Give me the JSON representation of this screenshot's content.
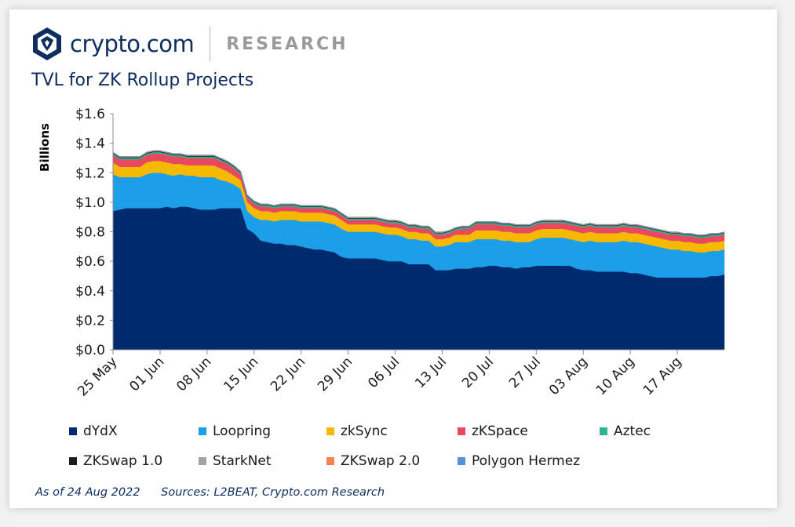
{
  "header": {
    "brand": "crypto.com",
    "section": "RESEARCH"
  },
  "colors": {
    "brand_navy": "#0d2e5f",
    "background": "#ffffff"
  },
  "footer": {
    "date_note": "As of 24 Aug 2022",
    "sources": "Sources:  L2BEAT, Crypto.com Research"
  },
  "chart_data": {
    "type": "area",
    "stacked": true,
    "title": "TVL for ZK Rollup Projects",
    "ylabel": "Billions",
    "xlabel": "",
    "ylim": [
      0,
      1.6
    ],
    "y_ticks": [
      "$0.0",
      "$0.2",
      "$0.4",
      "$0.6",
      "$0.8",
      "$1.0",
      "$1.2",
      "$1.4",
      "$1.6"
    ],
    "x_tick_labels": [
      "25 May",
      "01 Jun",
      "08 Jun",
      "15 Jun",
      "22 Jun",
      "29 Jun",
      "06 Jul",
      "13 Jul",
      "20 Jul",
      "27 Jul",
      "03 Aug",
      "10 Aug",
      "17 Aug"
    ],
    "grid": false,
    "legend_position": "bottom",
    "x": [
      "25 May",
      "26 May",
      "27 May",
      "28 May",
      "29 May",
      "30 May",
      "31 May",
      "01 Jun",
      "02 Jun",
      "03 Jun",
      "04 Jun",
      "05 Jun",
      "06 Jun",
      "07 Jun",
      "08 Jun",
      "09 Jun",
      "10 Jun",
      "11 Jun",
      "12 Jun",
      "13 Jun",
      "14 Jun",
      "15 Jun",
      "16 Jun",
      "17 Jun",
      "18 Jun",
      "19 Jun",
      "20 Jun",
      "21 Jun",
      "22 Jun",
      "23 Jun",
      "24 Jun",
      "25 Jun",
      "26 Jun",
      "27 Jun",
      "28 Jun",
      "29 Jun",
      "30 Jun",
      "01 Jul",
      "02 Jul",
      "03 Jul",
      "04 Jul",
      "05 Jul",
      "06 Jul",
      "07 Jul",
      "08 Jul",
      "09 Jul",
      "10 Jul",
      "11 Jul",
      "12 Jul",
      "13 Jul",
      "14 Jul",
      "15 Jul",
      "16 Jul",
      "17 Jul",
      "18 Jul",
      "19 Jul",
      "20 Jul",
      "21 Jul",
      "22 Jul",
      "23 Jul",
      "24 Jul",
      "25 Jul",
      "26 Jul",
      "27 Jul",
      "28 Jul",
      "29 Jul",
      "30 Jul",
      "31 Jul",
      "01 Aug",
      "02 Aug",
      "03 Aug",
      "04 Aug",
      "05 Aug",
      "06 Aug",
      "07 Aug",
      "08 Aug",
      "09 Aug",
      "10 Aug",
      "11 Aug",
      "12 Aug",
      "13 Aug",
      "14 Aug",
      "15 Aug",
      "16 Aug",
      "17 Aug",
      "18 Aug",
      "19 Aug",
      "20 Aug",
      "21 Aug",
      "22 Aug",
      "23 Aug",
      "24 Aug"
    ],
    "series": [
      {
        "name": "dYdX",
        "color": "#002a6e",
        "values": [
          0.94,
          0.95,
          0.96,
          0.96,
          0.96,
          0.96,
          0.96,
          0.96,
          0.97,
          0.96,
          0.97,
          0.97,
          0.96,
          0.95,
          0.95,
          0.95,
          0.96,
          0.96,
          0.96,
          0.96,
          0.82,
          0.79,
          0.74,
          0.73,
          0.72,
          0.72,
          0.71,
          0.71,
          0.7,
          0.69,
          0.68,
          0.68,
          0.67,
          0.66,
          0.63,
          0.62,
          0.62,
          0.62,
          0.62,
          0.62,
          0.61,
          0.6,
          0.6,
          0.6,
          0.58,
          0.58,
          0.58,
          0.58,
          0.54,
          0.54,
          0.54,
          0.55,
          0.55,
          0.55,
          0.56,
          0.56,
          0.57,
          0.57,
          0.56,
          0.56,
          0.55,
          0.56,
          0.56,
          0.57,
          0.57,
          0.57,
          0.57,
          0.57,
          0.57,
          0.55,
          0.54,
          0.54,
          0.53,
          0.53,
          0.53,
          0.53,
          0.53,
          0.52,
          0.52,
          0.51,
          0.5,
          0.49,
          0.49,
          0.49,
          0.49,
          0.49,
          0.49,
          0.49,
          0.49,
          0.5,
          0.5,
          0.51
        ]
      },
      {
        "name": "Loopring",
        "color": "#1a9fe8",
        "values": [
          0.25,
          0.22,
          0.21,
          0.21,
          0.21,
          0.23,
          0.24,
          0.24,
          0.22,
          0.22,
          0.22,
          0.21,
          0.22,
          0.22,
          0.22,
          0.22,
          0.19,
          0.18,
          0.16,
          0.13,
          0.12,
          0.11,
          0.14,
          0.15,
          0.15,
          0.16,
          0.17,
          0.17,
          0.17,
          0.18,
          0.19,
          0.19,
          0.19,
          0.19,
          0.19,
          0.18,
          0.18,
          0.18,
          0.18,
          0.18,
          0.18,
          0.18,
          0.18,
          0.17,
          0.17,
          0.17,
          0.16,
          0.16,
          0.16,
          0.16,
          0.17,
          0.18,
          0.18,
          0.18,
          0.19,
          0.19,
          0.18,
          0.18,
          0.18,
          0.18,
          0.18,
          0.17,
          0.17,
          0.18,
          0.19,
          0.19,
          0.19,
          0.19,
          0.18,
          0.19,
          0.19,
          0.2,
          0.2,
          0.2,
          0.2,
          0.2,
          0.21,
          0.21,
          0.21,
          0.21,
          0.21,
          0.21,
          0.2,
          0.19,
          0.19,
          0.18,
          0.18,
          0.17,
          0.17,
          0.17,
          0.17,
          0.17
        ]
      },
      {
        "name": "zkSync",
        "color": "#f7b800",
        "values": [
          0.08,
          0.07,
          0.07,
          0.07,
          0.07,
          0.08,
          0.08,
          0.08,
          0.08,
          0.08,
          0.07,
          0.07,
          0.07,
          0.08,
          0.08,
          0.08,
          0.08,
          0.07,
          0.06,
          0.06,
          0.06,
          0.06,
          0.06,
          0.06,
          0.06,
          0.06,
          0.06,
          0.06,
          0.06,
          0.06,
          0.06,
          0.06,
          0.06,
          0.06,
          0.06,
          0.05,
          0.05,
          0.05,
          0.05,
          0.05,
          0.05,
          0.05,
          0.05,
          0.05,
          0.05,
          0.05,
          0.05,
          0.05,
          0.05,
          0.05,
          0.05,
          0.05,
          0.05,
          0.05,
          0.06,
          0.06,
          0.06,
          0.06,
          0.06,
          0.06,
          0.06,
          0.06,
          0.06,
          0.06,
          0.06,
          0.06,
          0.06,
          0.06,
          0.06,
          0.06,
          0.06,
          0.06,
          0.06,
          0.06,
          0.06,
          0.06,
          0.06,
          0.06,
          0.06,
          0.06,
          0.06,
          0.06,
          0.06,
          0.06,
          0.06,
          0.06,
          0.06,
          0.06,
          0.06,
          0.06,
          0.06,
          0.06
        ]
      },
      {
        "name": "zKSpace",
        "color": "#e8495f",
        "values": [
          0.05,
          0.05,
          0.05,
          0.05,
          0.05,
          0.05,
          0.05,
          0.05,
          0.05,
          0.05,
          0.05,
          0.05,
          0.05,
          0.05,
          0.05,
          0.05,
          0.05,
          0.05,
          0.05,
          0.04,
          0.03,
          0.03,
          0.03,
          0.03,
          0.03,
          0.03,
          0.03,
          0.03,
          0.03,
          0.03,
          0.03,
          0.03,
          0.03,
          0.03,
          0.03,
          0.03,
          0.03,
          0.03,
          0.03,
          0.03,
          0.03,
          0.03,
          0.03,
          0.03,
          0.03,
          0.03,
          0.03,
          0.03,
          0.03,
          0.03,
          0.03,
          0.03,
          0.04,
          0.04,
          0.04,
          0.04,
          0.04,
          0.04,
          0.04,
          0.04,
          0.04,
          0.04,
          0.04,
          0.04,
          0.04,
          0.04,
          0.04,
          0.04,
          0.04,
          0.04,
          0.04,
          0.04,
          0.04,
          0.04,
          0.04,
          0.04,
          0.04,
          0.04,
          0.04,
          0.04,
          0.04,
          0.04,
          0.04,
          0.04,
          0.04,
          0.04,
          0.04,
          0.04,
          0.04,
          0.04,
          0.04,
          0.04
        ]
      },
      {
        "name": "Aztec",
        "color": "#2bb594",
        "values": [
          0.01,
          0.01,
          0.01,
          0.01,
          0.01,
          0.01,
          0.01,
          0.01,
          0.01,
          0.01,
          0.01,
          0.01,
          0.01,
          0.01,
          0.01,
          0.01,
          0.01,
          0.01,
          0.01,
          0.01,
          0.01,
          0.01,
          0.01,
          0.01,
          0.01,
          0.01,
          0.01,
          0.01,
          0.01,
          0.01,
          0.01,
          0.01,
          0.01,
          0.01,
          0.01,
          0.01,
          0.01,
          0.01,
          0.01,
          0.01,
          0.01,
          0.01,
          0.01,
          0.01,
          0.01,
          0.01,
          0.01,
          0.01,
          0.01,
          0.01,
          0.01,
          0.01,
          0.01,
          0.01,
          0.01,
          0.01,
          0.01,
          0.01,
          0.01,
          0.01,
          0.01,
          0.01,
          0.01,
          0.01,
          0.01,
          0.01,
          0.01,
          0.01,
          0.01,
          0.01,
          0.01,
          0.01,
          0.01,
          0.01,
          0.01,
          0.01,
          0.01,
          0.01,
          0.01,
          0.01,
          0.01,
          0.01,
          0.01,
          0.01,
          0.01,
          0.01,
          0.01,
          0.01,
          0.01,
          0.01,
          0.01,
          0.01
        ]
      },
      {
        "name": "ZKSwap 1.0",
        "color": "#1c1c1c",
        "values": [
          0.005,
          0.005,
          0.005,
          0.005,
          0.005,
          0.005,
          0.005,
          0.005,
          0.005,
          0.005,
          0.005,
          0.005,
          0.005,
          0.005,
          0.005,
          0.005,
          0.005,
          0.005,
          0.005,
          0.005,
          0.004,
          0.004,
          0.004,
          0.004,
          0.004,
          0.004,
          0.004,
          0.004,
          0.004,
          0.004,
          0.004,
          0.004,
          0.004,
          0.004,
          0.004,
          0.004,
          0.004,
          0.004,
          0.004,
          0.004,
          0.004,
          0.004,
          0.004,
          0.004,
          0.004,
          0.004,
          0.004,
          0.004,
          0.004,
          0.004,
          0.004,
          0.004,
          0.004,
          0.004,
          0.004,
          0.004,
          0.004,
          0.004,
          0.004,
          0.004,
          0.004,
          0.004,
          0.004,
          0.004,
          0.004,
          0.004,
          0.004,
          0.004,
          0.004,
          0.004,
          0.004,
          0.004,
          0.004,
          0.004,
          0.004,
          0.004,
          0.004,
          0.004,
          0.004,
          0.004,
          0.004,
          0.004,
          0.004,
          0.004,
          0.004,
          0.004,
          0.004,
          0.004,
          0.004,
          0.004,
          0.004,
          0.004
        ]
      },
      {
        "name": "StarkNet",
        "color": "#a3a3a3",
        "values": [
          0.002,
          0.002,
          0.002,
          0.002,
          0.002,
          0.002,
          0.002,
          0.002,
          0.002,
          0.002,
          0.002,
          0.002,
          0.002,
          0.002,
          0.002,
          0.002,
          0.002,
          0.002,
          0.002,
          0.002,
          0.002,
          0.002,
          0.002,
          0.002,
          0.002,
          0.002,
          0.002,
          0.002,
          0.002,
          0.002,
          0.002,
          0.002,
          0.002,
          0.002,
          0.002,
          0.002,
          0.002,
          0.002,
          0.002,
          0.002,
          0.002,
          0.002,
          0.002,
          0.002,
          0.002,
          0.002,
          0.002,
          0.002,
          0.002,
          0.002,
          0.002,
          0.002,
          0.002,
          0.002,
          0.002,
          0.002,
          0.002,
          0.002,
          0.002,
          0.002,
          0.002,
          0.002,
          0.002,
          0.002,
          0.002,
          0.002,
          0.002,
          0.002,
          0.002,
          0.002,
          0.002,
          0.002,
          0.002,
          0.002,
          0.002,
          0.002,
          0.002,
          0.002,
          0.002,
          0.002,
          0.002,
          0.002,
          0.002,
          0.002,
          0.002,
          0.002,
          0.002,
          0.002,
          0.002,
          0.002,
          0.002,
          0.002
        ]
      },
      {
        "name": "ZKSwap 2.0",
        "color": "#f28250",
        "values": [
          0.002,
          0.002,
          0.002,
          0.002,
          0.002,
          0.002,
          0.002,
          0.002,
          0.002,
          0.002,
          0.002,
          0.002,
          0.002,
          0.002,
          0.002,
          0.002,
          0.002,
          0.002,
          0.002,
          0.002,
          0.002,
          0.002,
          0.002,
          0.002,
          0.002,
          0.002,
          0.002,
          0.002,
          0.002,
          0.002,
          0.002,
          0.002,
          0.002,
          0.002,
          0.002,
          0.002,
          0.002,
          0.002,
          0.002,
          0.002,
          0.002,
          0.002,
          0.002,
          0.002,
          0.002,
          0.002,
          0.002,
          0.002,
          0.002,
          0.002,
          0.002,
          0.002,
          0.002,
          0.002,
          0.002,
          0.002,
          0.002,
          0.002,
          0.002,
          0.002,
          0.002,
          0.002,
          0.002,
          0.002,
          0.002,
          0.002,
          0.002,
          0.002,
          0.002,
          0.002,
          0.002,
          0.002,
          0.002,
          0.002,
          0.002,
          0.002,
          0.002,
          0.002,
          0.002,
          0.002,
          0.002,
          0.002,
          0.002,
          0.002,
          0.002,
          0.002,
          0.002,
          0.002,
          0.002,
          0.002,
          0.002,
          0.002
        ]
      },
      {
        "name": "Polygon Hermez",
        "color": "#5b8fd6",
        "values": [
          0.002,
          0.002,
          0.002,
          0.002,
          0.002,
          0.002,
          0.002,
          0.002,
          0.002,
          0.002,
          0.002,
          0.002,
          0.002,
          0.002,
          0.002,
          0.002,
          0.002,
          0.002,
          0.002,
          0.002,
          0.002,
          0.002,
          0.002,
          0.002,
          0.002,
          0.002,
          0.002,
          0.002,
          0.002,
          0.002,
          0.002,
          0.002,
          0.002,
          0.002,
          0.002,
          0.002,
          0.002,
          0.002,
          0.002,
          0.002,
          0.002,
          0.002,
          0.002,
          0.002,
          0.002,
          0.002,
          0.002,
          0.002,
          0.002,
          0.002,
          0.002,
          0.002,
          0.002,
          0.002,
          0.002,
          0.002,
          0.002,
          0.002,
          0.002,
          0.002,
          0.002,
          0.002,
          0.002,
          0.002,
          0.002,
          0.002,
          0.002,
          0.002,
          0.002,
          0.002,
          0.002,
          0.002,
          0.002,
          0.002,
          0.002,
          0.002,
          0.002,
          0.002,
          0.002,
          0.002,
          0.002,
          0.002,
          0.002,
          0.002,
          0.002,
          0.002,
          0.002,
          0.002,
          0.002,
          0.002,
          0.002,
          0.002
        ]
      }
    ]
  }
}
